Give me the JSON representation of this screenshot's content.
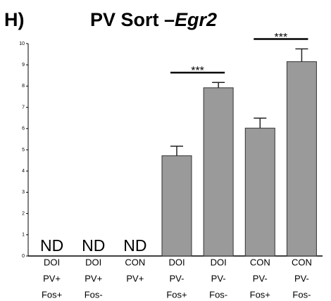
{
  "chart_data": {
    "type": "bar",
    "panel_label": "H)",
    "title": "PV Sort –",
    "title_italic": "Egr2",
    "categories": [
      [
        "DOI",
        "PV+",
        "Fos+"
      ],
      [
        "DOI",
        "PV+",
        "Fos-"
      ],
      [
        "CON",
        "PV+"
      ],
      [
        "DOI",
        "PV-",
        "Fos+"
      ],
      [
        "DOI",
        "PV-",
        "Fos-"
      ],
      [
        "CON",
        "PV-",
        "Fos+"
      ],
      [
        "CON",
        "PV-",
        "Fos-"
      ]
    ],
    "values": [
      null,
      null,
      null,
      4.72,
      7.92,
      6.02,
      9.15
    ],
    "value_labels": [
      "ND",
      "ND",
      "ND",
      null,
      null,
      null,
      null
    ],
    "errors": [
      null,
      null,
      null,
      0.45,
      0.25,
      0.47,
      0.6
    ],
    "color": "#9a9a9a",
    "ylim": [
      0,
      10
    ],
    "yticks": [
      0,
      1,
      2,
      3,
      4,
      5,
      6,
      7,
      8,
      9,
      10
    ],
    "significance": [
      {
        "label": "***",
        "between": [
          3,
          4
        ]
      },
      {
        "label": "***",
        "between": [
          5,
          6
        ]
      }
    ]
  }
}
